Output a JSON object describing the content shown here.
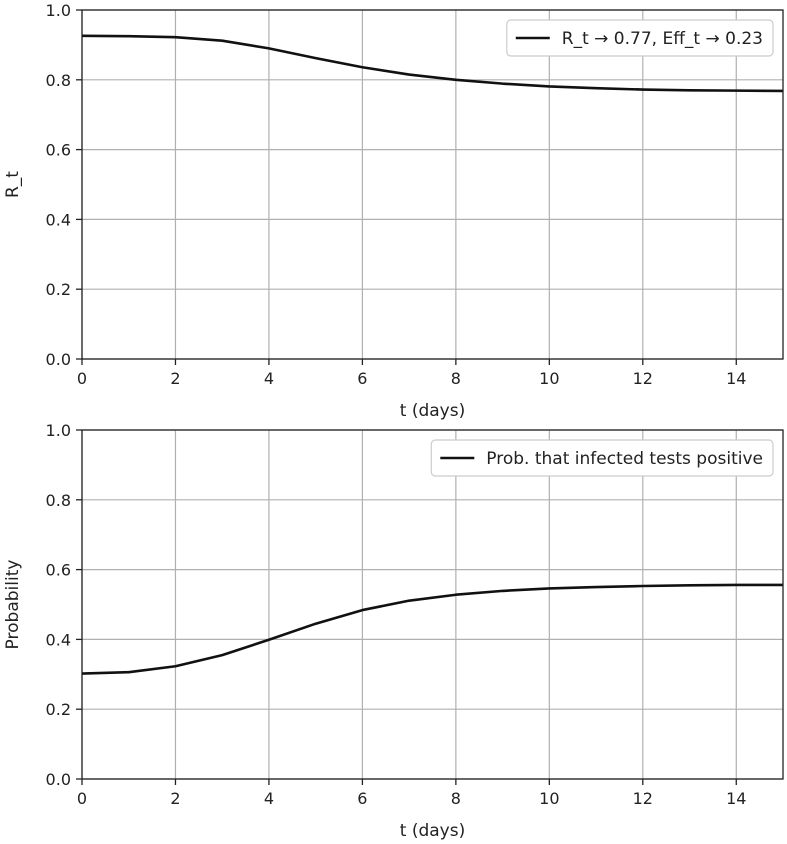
{
  "chart_data": [
    {
      "type": "line",
      "title": "",
      "xlabel": "t (days)",
      "ylabel": "R_t",
      "xlim": [
        0,
        15
      ],
      "ylim": [
        0,
        1.0
      ],
      "xticks": [
        "0",
        "2",
        "4",
        "6",
        "8",
        "10",
        "12",
        "14"
      ],
      "yticks": [
        "0.0",
        "0.2",
        "0.4",
        "0.6",
        "0.8",
        "1.0"
      ],
      "grid": true,
      "legend_position": "top-right",
      "series": [
        {
          "name": "R_t → 0.77, Eff_t → 0.23",
          "color": "#111111",
          "x": [
            0,
            1,
            2,
            3,
            4,
            5,
            6,
            7,
            8,
            9,
            10,
            11,
            12,
            13,
            14,
            15
          ],
          "y": [
            0.926,
            0.925,
            0.922,
            0.912,
            0.89,
            0.862,
            0.836,
            0.815,
            0.8,
            0.789,
            0.781,
            0.776,
            0.772,
            0.77,
            0.769,
            0.768
          ]
        }
      ]
    },
    {
      "type": "line",
      "title": "",
      "xlabel": "t (days)",
      "ylabel": "Probability",
      "xlim": [
        0,
        15
      ],
      "ylim": [
        0,
        1.0
      ],
      "xticks": [
        "0",
        "2",
        "4",
        "6",
        "8",
        "10",
        "12",
        "14"
      ],
      "yticks": [
        "0.0",
        "0.2",
        "0.4",
        "0.6",
        "0.8",
        "1.0"
      ],
      "grid": true,
      "legend_position": "top-right",
      "series": [
        {
          "name": "Prob. that infected tests positive",
          "color": "#111111",
          "x": [
            0,
            1,
            2,
            3,
            4,
            5,
            6,
            7,
            8,
            9,
            10,
            11,
            12,
            13,
            14,
            15
          ],
          "y": [
            0.302,
            0.306,
            0.323,
            0.355,
            0.399,
            0.445,
            0.484,
            0.511,
            0.528,
            0.539,
            0.546,
            0.55,
            0.553,
            0.555,
            0.556,
            0.556
          ]
        }
      ]
    }
  ]
}
